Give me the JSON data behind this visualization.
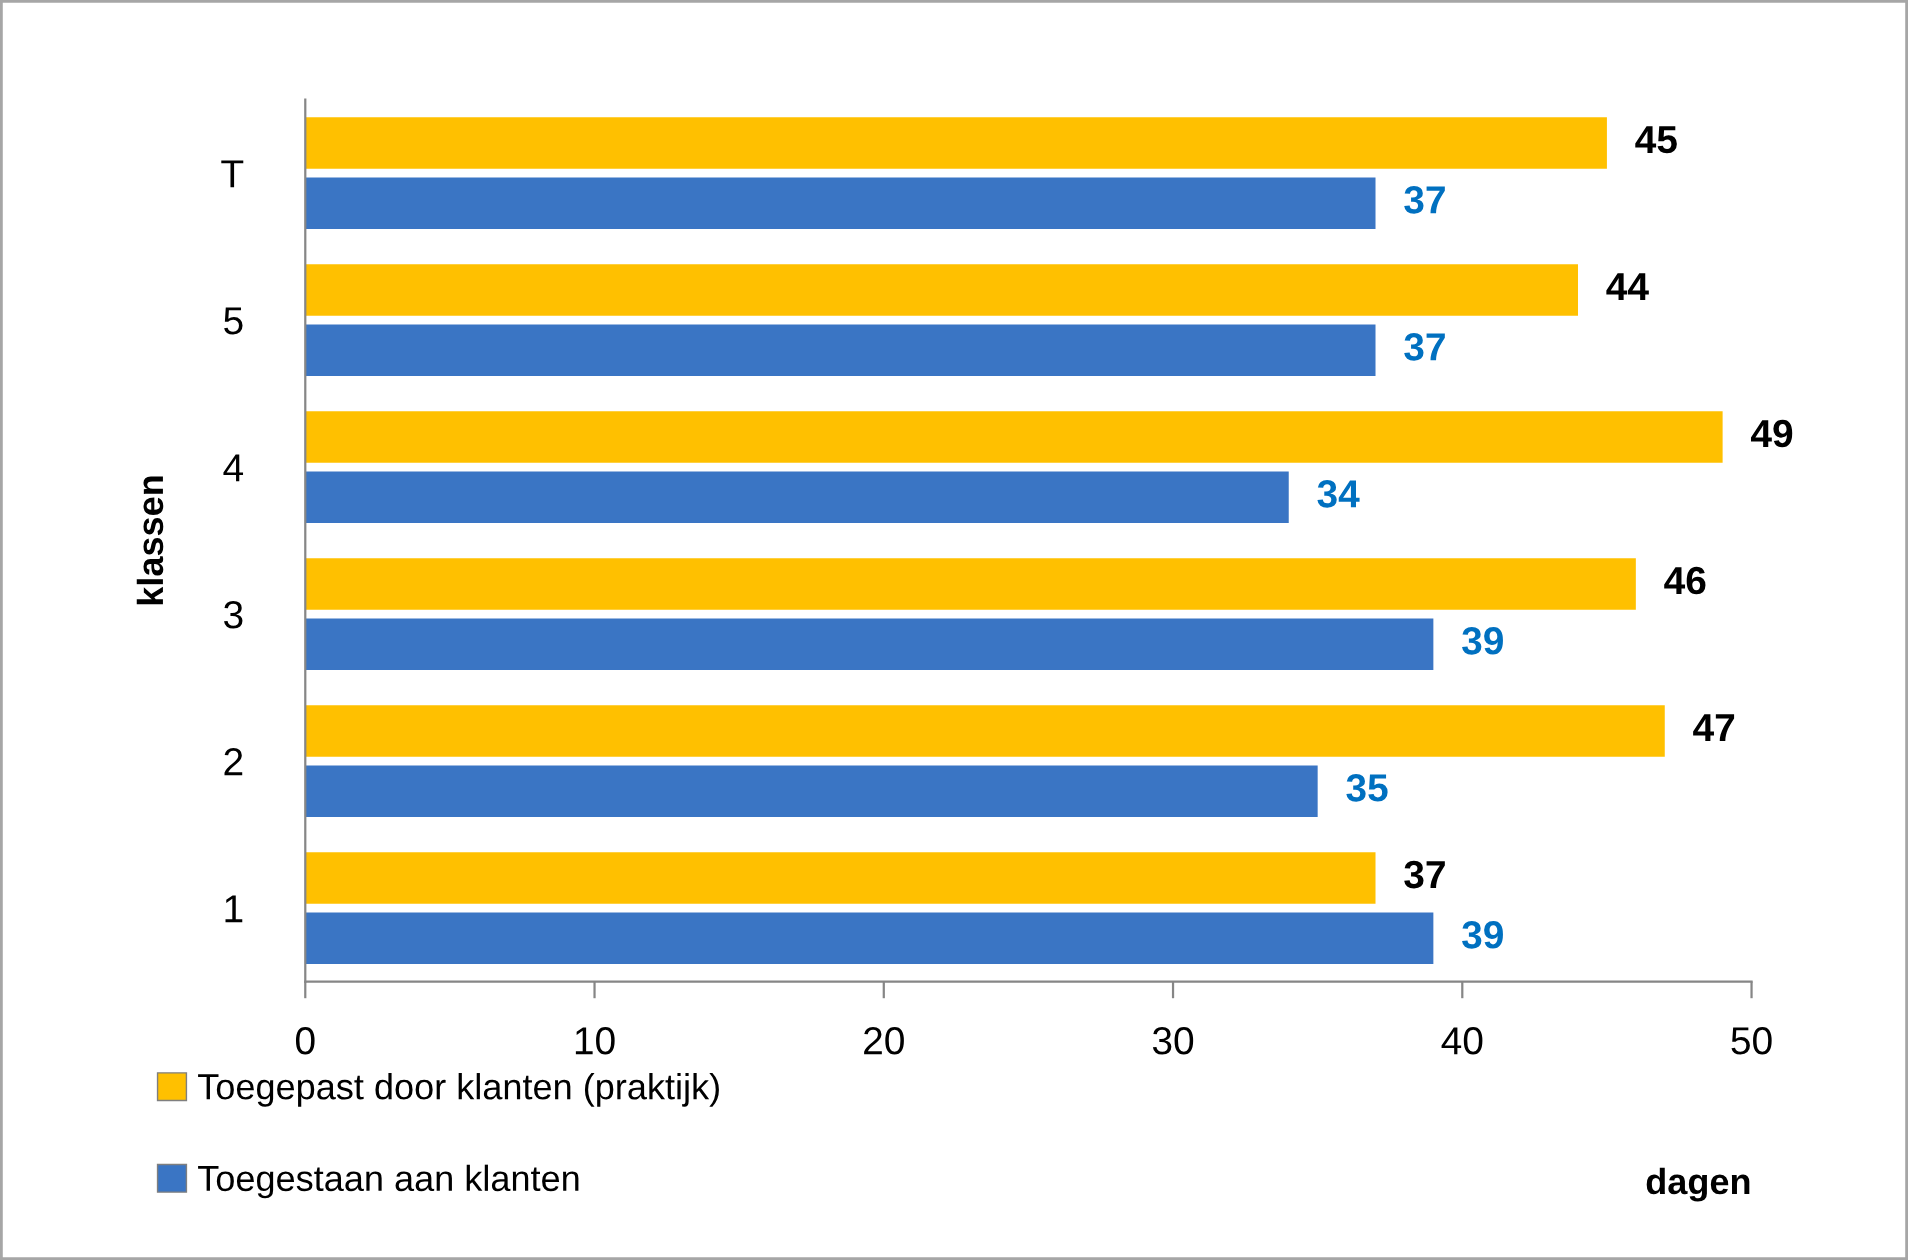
{
  "chart_data": {
    "type": "bar",
    "orientation": "horizontal",
    "categories": [
      "T",
      "5",
      "4",
      "3",
      "2",
      "1"
    ],
    "series": [
      {
        "name": "Toegepast door klanten (praktijk)",
        "color": "#ffc000",
        "values": [
          45,
          44,
          49,
          46,
          47,
          37
        ]
      },
      {
        "name": "Toegestaan aan klanten",
        "color": "#3a75c4",
        "values": [
          37,
          37,
          34,
          39,
          35,
          39
        ]
      }
    ],
    "xlim": [
      0,
      50
    ],
    "xticks": [
      0,
      10,
      20,
      30,
      40,
      50
    ],
    "xlabel": "dagen",
    "ylabel": "klassen",
    "data_labels": true,
    "legend": "bottom left",
    "grid": false
  }
}
